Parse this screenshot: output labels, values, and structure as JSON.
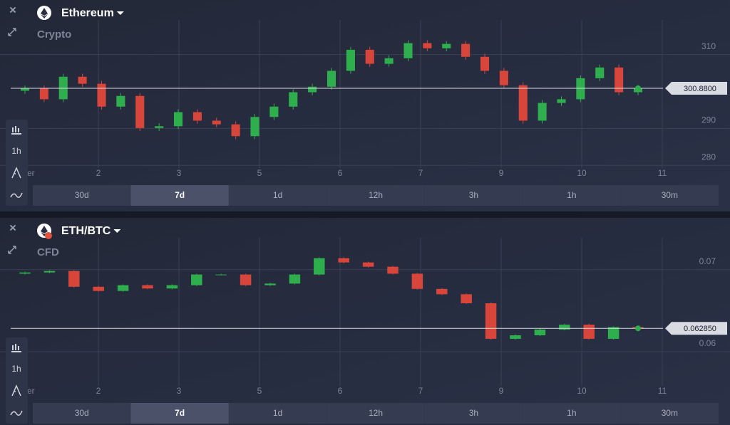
{
  "panels": [
    {
      "title": "Ethereum",
      "subtitle": "Crypto",
      "interval": "1h",
      "timeframes": [
        "30d",
        "7d",
        "1d",
        "12h",
        "3h",
        "1h",
        "30m"
      ],
      "selected_timeframe": 1,
      "current_price": {
        "value": 300.88,
        "label": "300.8800"
      },
      "chart_data": {
        "type": "candlestick",
        "x_labels": [
          "ber",
          "2",
          "3",
          "5",
          "6",
          "7",
          "9",
          "10",
          "11"
        ],
        "open": [
          300.2,
          300.8,
          297.9,
          304.0,
          302.1,
          295.9,
          298.8,
          290.1,
          290.6,
          294.4,
          292.1,
          291.1,
          287.9,
          293.1,
          295.9,
          299.8,
          301.3,
          305.6,
          311.3,
          307.5,
          309.0,
          313.1,
          311.7,
          312.9,
          309.4,
          305.6,
          301.7,
          292.1,
          296.9,
          297.9,
          303.6,
          306.5,
          299.8
        ],
        "high": [
          301.6,
          301.6,
          304.8,
          304.8,
          302.9,
          299.6,
          299.6,
          291.4,
          295.2,
          295.2,
          292.9,
          291.9,
          293.9,
          296.7,
          300.6,
          302.1,
          306.4,
          312.1,
          312.1,
          309.8,
          313.9,
          313.9,
          313.7,
          313.7,
          310.2,
          306.4,
          302.5,
          297.7,
          298.7,
          304.4,
          307.3,
          307.3,
          301.68
        ],
        "low": [
          299.4,
          297.1,
          297.1,
          301.3,
          295.1,
          295.1,
          289.3,
          289.3,
          289.8,
          291.3,
          290.3,
          287.1,
          287.1,
          292.3,
          295.1,
          299.0,
          300.5,
          304.8,
          306.7,
          306.7,
          308.2,
          310.9,
          310.9,
          308.6,
          304.8,
          300.9,
          291.3,
          291.3,
          296.1,
          297.1,
          302.8,
          299.0,
          299.0
        ],
        "close": [
          300.8,
          297.9,
          304.0,
          302.1,
          295.9,
          298.8,
          290.1,
          290.6,
          294.4,
          292.1,
          291.1,
          287.9,
          293.1,
          295.9,
          299.8,
          301.3,
          305.6,
          311.3,
          307.5,
          309.0,
          313.1,
          311.7,
          312.9,
          309.4,
          305.6,
          301.7,
          292.1,
          296.9,
          297.9,
          303.6,
          306.5,
          299.8,
          300.88
        ],
        "ylim": [
          278.5,
          319
        ],
        "yticks": [
          280,
          290,
          310
        ],
        "grid": true,
        "up_color": "#2fae4e",
        "down_color": "#d8453a"
      }
    },
    {
      "title": "ETH/BTC",
      "subtitle": "CFD",
      "interval": "1h",
      "timeframes": [
        "30d",
        "7d",
        "1d",
        "12h",
        "3h",
        "1h",
        "30m"
      ],
      "selected_timeframe": 1,
      "current_price": {
        "value": 0.06285,
        "label": "0.062850"
      },
      "chart_data": {
        "type": "candlestick",
        "x_labels": [
          "ber",
          "2",
          "3",
          "5",
          "6",
          "7",
          "9",
          "10",
          "11"
        ],
        "open": [
          0.0695,
          0.06965,
          0.06983,
          0.06791,
          0.0674,
          0.0681,
          0.0677,
          0.0681,
          0.0694,
          0.0694,
          0.0681,
          0.0683,
          0.0694,
          0.07139,
          0.07087,
          0.07035,
          0.0695,
          0.06765,
          0.067,
          0.0659,
          0.06157,
          0.062,
          0.0627,
          0.0633,
          0.06157,
          0.063
        ],
        "high": [
          0.06975,
          0.06993,
          0.06993,
          0.06801,
          0.0682,
          0.0682,
          0.0682,
          0.0695,
          0.0695,
          0.0695,
          0.0684,
          0.0695,
          0.07149,
          0.07149,
          0.07097,
          0.07045,
          0.0696,
          0.06775,
          0.0671,
          0.066,
          0.0621,
          0.0628,
          0.0634,
          0.0634,
          0.0631,
          0.0631
        ],
        "low": [
          0.0694,
          0.06955,
          0.06781,
          0.0673,
          0.0673,
          0.0676,
          0.0676,
          0.068,
          0.0693,
          0.068,
          0.068,
          0.0682,
          0.0693,
          0.07077,
          0.07025,
          0.0694,
          0.06755,
          0.0669,
          0.0658,
          0.06147,
          0.06147,
          0.0619,
          0.0626,
          0.06147,
          0.06147,
          0.06275
        ],
        "close": [
          0.06965,
          0.06983,
          0.06791,
          0.0674,
          0.0681,
          0.0677,
          0.0681,
          0.0694,
          0.0694,
          0.0681,
          0.0683,
          0.0694,
          0.07139,
          0.07087,
          0.07035,
          0.0695,
          0.06765,
          0.067,
          0.0659,
          0.06157,
          0.062,
          0.0627,
          0.0633,
          0.06157,
          0.063,
          0.06285
        ],
        "ylim": [
          0.0555,
          0.0737
        ],
        "yticks": [
          0.06,
          0.07
        ],
        "grid": true,
        "up_color": "#2fae4e",
        "down_color": "#d8453a"
      }
    }
  ]
}
